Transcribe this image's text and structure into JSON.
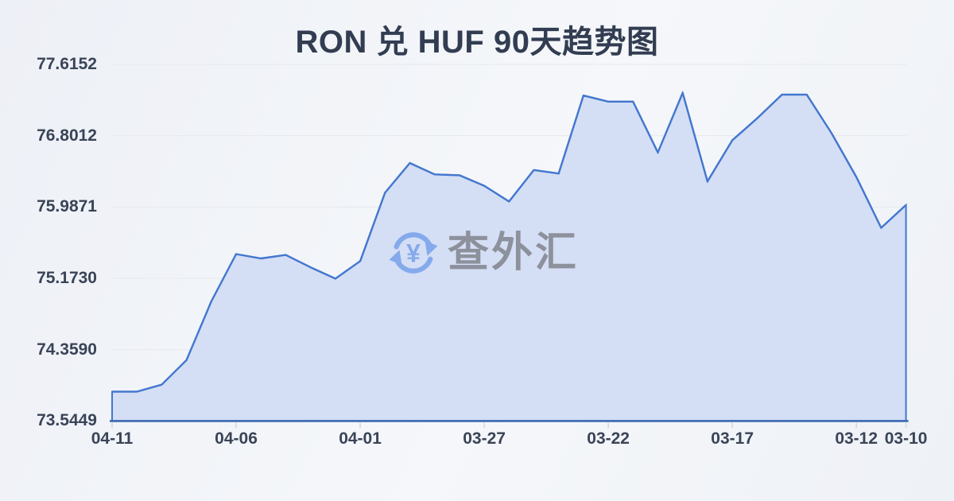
{
  "header": {
    "title": "RON 兑 HUF 90天趋势图"
  },
  "watermark": {
    "icon": "currency-exchange-icon",
    "currency_symbol": "¥",
    "brand_text": "查外汇"
  },
  "colors": {
    "line": "#4377cf",
    "fill": "#d4def4",
    "axis": "#3b69b4",
    "grid": "#e6e8ed",
    "tick": "#d5d9df",
    "label_text": "#3a4457",
    "title_text": "#323d52",
    "watermark_blue": "#84aaec",
    "watermark_gray": "#8c919c"
  },
  "chart_data": {
    "type": "area",
    "title": "RON 兑 HUF 90天趋势图",
    "x": [
      "04-11",
      "04-10",
      "04-09",
      "04-08",
      "04-07",
      "04-06",
      "04-05",
      "04-04",
      "04-03",
      "04-02",
      "04-01",
      "03-31",
      "03-30",
      "03-29",
      "03-28",
      "03-27",
      "03-26",
      "03-25",
      "03-24",
      "03-23",
      "03-22",
      "03-21",
      "03-20",
      "03-19",
      "03-18",
      "03-17",
      "03-16",
      "03-15",
      "03-14",
      "03-13",
      "03-12",
      "03-11",
      "03-10"
    ],
    "values": [
      73.88,
      73.88,
      73.96,
      74.24,
      74.91,
      75.45,
      75.4,
      75.44,
      75.3,
      75.17,
      75.37,
      76.15,
      76.49,
      76.36,
      76.35,
      76.23,
      76.05,
      76.41,
      76.37,
      77.26,
      77.19,
      77.19,
      76.61,
      77.29,
      76.28,
      76.75,
      77.0,
      77.27,
      77.27,
      76.83,
      76.33,
      75.75,
      76.01
    ],
    "y_tick_labels": [
      "77.6152",
      "76.8012",
      "75.9871",
      "75.1730",
      "74.3590",
      "73.5449"
    ],
    "x_tick_labels": [
      "04-11",
      "04-06",
      "04-01",
      "03-27",
      "03-22",
      "03-17",
      "03-12",
      "03-10"
    ],
    "x_tick_indices": [
      0,
      5,
      10,
      15,
      20,
      25,
      30,
      32
    ],
    "ylim": [
      73.5449,
      77.6152
    ],
    "xlabel": "",
    "ylabel": "",
    "grid": true,
    "legend_position": "none",
    "x_axis_note": "dates run newest (left) to oldest (right)"
  }
}
